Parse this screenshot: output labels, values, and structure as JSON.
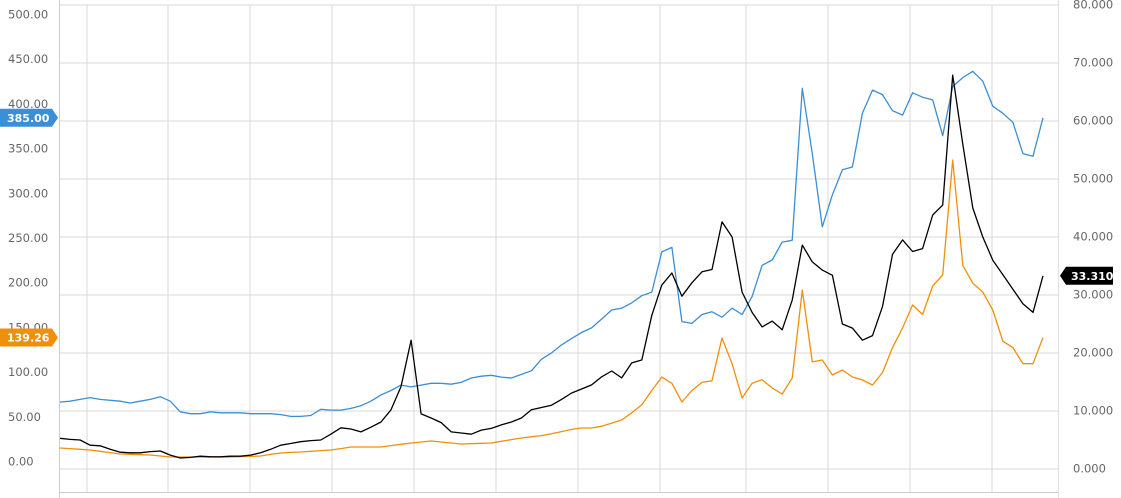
{
  "chart_data": {
    "type": "line",
    "categories": [
      null,
      null,
      null,
      null,
      null,
      null,
      null,
      null,
      null,
      null,
      null,
      null,
      null,
      null,
      null,
      null,
      null,
      null,
      null,
      null,
      null,
      null,
      null,
      null,
      null,
      null,
      null,
      null,
      null,
      null,
      null,
      null,
      null,
      null,
      null,
      null,
      null,
      null,
      null,
      null,
      null,
      null,
      null,
      null,
      null,
      null,
      null,
      null,
      null,
      null,
      null,
      null,
      null,
      null,
      null,
      null,
      null,
      null,
      null,
      null,
      null,
      null,
      null,
      null,
      null,
      null,
      null,
      null,
      null,
      null,
      null,
      null,
      null,
      null,
      null,
      null,
      null,
      null,
      null,
      null,
      null,
      null,
      null,
      null,
      null,
      null,
      null,
      null,
      null,
      null,
      null,
      null,
      null,
      null,
      null,
      null,
      null,
      null,
      null
    ],
    "series": [
      {
        "color": "#3a8fd6",
        "end_label": "385.00",
        "values": [
          67,
          68,
          70,
          72,
          70,
          69,
          68,
          66,
          68,
          70,
          73,
          68,
          56,
          54,
          54,
          56,
          55,
          55,
          55,
          54,
          54,
          54,
          53,
          51,
          51,
          52,
          59,
          58,
          58,
          60,
          63,
          68,
          75,
          80,
          86,
          84,
          86,
          88,
          88,
          87,
          89,
          94,
          96,
          97,
          95,
          94,
          98,
          102,
          115,
          122,
          131,
          138,
          145,
          150,
          160,
          170,
          172,
          178,
          186,
          190,
          235,
          240,
          157,
          155,
          165,
          168,
          162,
          172,
          165,
          185,
          220,
          226,
          246,
          248,
          418,
          345,
          263,
          299,
          327,
          330,
          390,
          416,
          411,
          393,
          388,
          413,
          408,
          405,
          365,
          420,
          430,
          437,
          426,
          398,
          390,
          380,
          345,
          342,
          385
        ]
      },
      {
        "color": "#f0900a",
        "end_label": "139.26",
        "values": [
          15.7,
          15.0,
          14.2,
          13.4,
          12.0,
          10.5,
          9.0,
          8.6,
          8.2,
          7.8,
          6.7,
          5.6,
          5.6,
          5.6,
          5.6,
          5.6,
          5.6,
          5.6,
          6.0,
          6.3,
          6.7,
          8.5,
          10.1,
          10.7,
          11.2,
          12.0,
          12.7,
          13.4,
          15.0,
          16.8,
          16.8,
          16.8,
          16.8,
          18.3,
          19.8,
          21.3,
          22.4,
          23.5,
          22.4,
          21.2,
          20.1,
          20.5,
          20.9,
          21.3,
          23.1,
          25.0,
          26.8,
          28.2,
          29.5,
          31.5,
          34.0,
          36.5,
          38.0,
          38.0,
          40.0,
          43.5,
          47.0,
          55.0,
          64.0,
          80.0,
          95.0,
          88.0,
          67.1,
          80.0,
          89.0,
          90.8,
          138.7,
          110.0,
          71.6,
          88.0,
          92.0,
          82.8,
          76.0,
          94.0,
          192.4,
          112.0,
          114.1,
          97.3,
          102.9,
          95.1,
          91.7,
          86.1,
          100.0,
          128.0,
          150.0,
          175.6,
          165.0,
          197.0,
          209.2,
          337.8,
          220.0,
          200.0,
          190.0,
          170.0,
          135.0,
          128.0,
          110.0,
          110.0,
          139.26
        ]
      },
      {
        "color": "#000000",
        "axis": "y2",
        "end_label": "33.310",
        "values": [
          5.3,
          5.1,
          5.0,
          4.1,
          4.0,
          3.4,
          2.9,
          2.8,
          2.8,
          3.0,
          3.1,
          2.4,
          1.9,
          2.0,
          2.2,
          2.1,
          2.1,
          2.2,
          2.2,
          2.4,
          2.8,
          3.4,
          4.1,
          4.4,
          4.7,
          4.9,
          5.0,
          6.0,
          7.1,
          6.9,
          6.4,
          7.2,
          8.1,
          10.2,
          14.2,
          22.2,
          9.5,
          8.8,
          8.0,
          6.4,
          6.2,
          6.0,
          6.7,
          7.0,
          7.6,
          8.1,
          8.8,
          10.2,
          10.6,
          11.0,
          12.0,
          13.1,
          13.8,
          14.5,
          15.9,
          16.9,
          15.7,
          18.3,
          18.8,
          26.5,
          31.7,
          33.8,
          29.8,
          32.1,
          34.0,
          34.4,
          42.6,
          40.0,
          30.5,
          27.0,
          24.5,
          25.5,
          24.0,
          29.1,
          38.6,
          35.7,
          34.3,
          33.4,
          25.0,
          24.3,
          22.2,
          23.0,
          28.0,
          37.0,
          39.5,
          37.5,
          38.0,
          43.8,
          45.5,
          67.9,
          56.0,
          45.0,
          40.0,
          36.0,
          33.5,
          31.0,
          28.5,
          27.0,
          33.31
        ]
      }
    ],
    "ylim": [
      0,
      500
    ],
    "yticks": [
      {
        "value": 0,
        "label": "0.00"
      },
      {
        "value": 50,
        "label": "50.00"
      },
      {
        "value": 100,
        "label": "100.00"
      },
      {
        "value": 150,
        "label": "150.00"
      },
      {
        "value": 200,
        "label": "200.00"
      },
      {
        "value": 250,
        "label": "250.00"
      },
      {
        "value": 300,
        "label": "300.00"
      },
      {
        "value": 350,
        "label": "350.00"
      },
      {
        "value": 400,
        "label": "400.00"
      },
      {
        "value": 450,
        "label": "450.00"
      },
      {
        "value": 500,
        "label": "500.00"
      }
    ],
    "y2lim": [
      0,
      80
    ],
    "y2ticks": [
      {
        "value": 0,
        "label": "0.000"
      },
      {
        "value": 10,
        "label": "10.000"
      },
      {
        "value": 20,
        "label": "20.000"
      },
      {
        "value": 30,
        "label": "30.000"
      },
      {
        "value": 40,
        "label": "40.000"
      },
      {
        "value": 50,
        "label": "50.000"
      },
      {
        "value": 60,
        "label": "60.000"
      },
      {
        "value": 70,
        "label": "70.000"
      },
      {
        "value": 80,
        "label": "80.000"
      }
    ],
    "grid": true
  }
}
